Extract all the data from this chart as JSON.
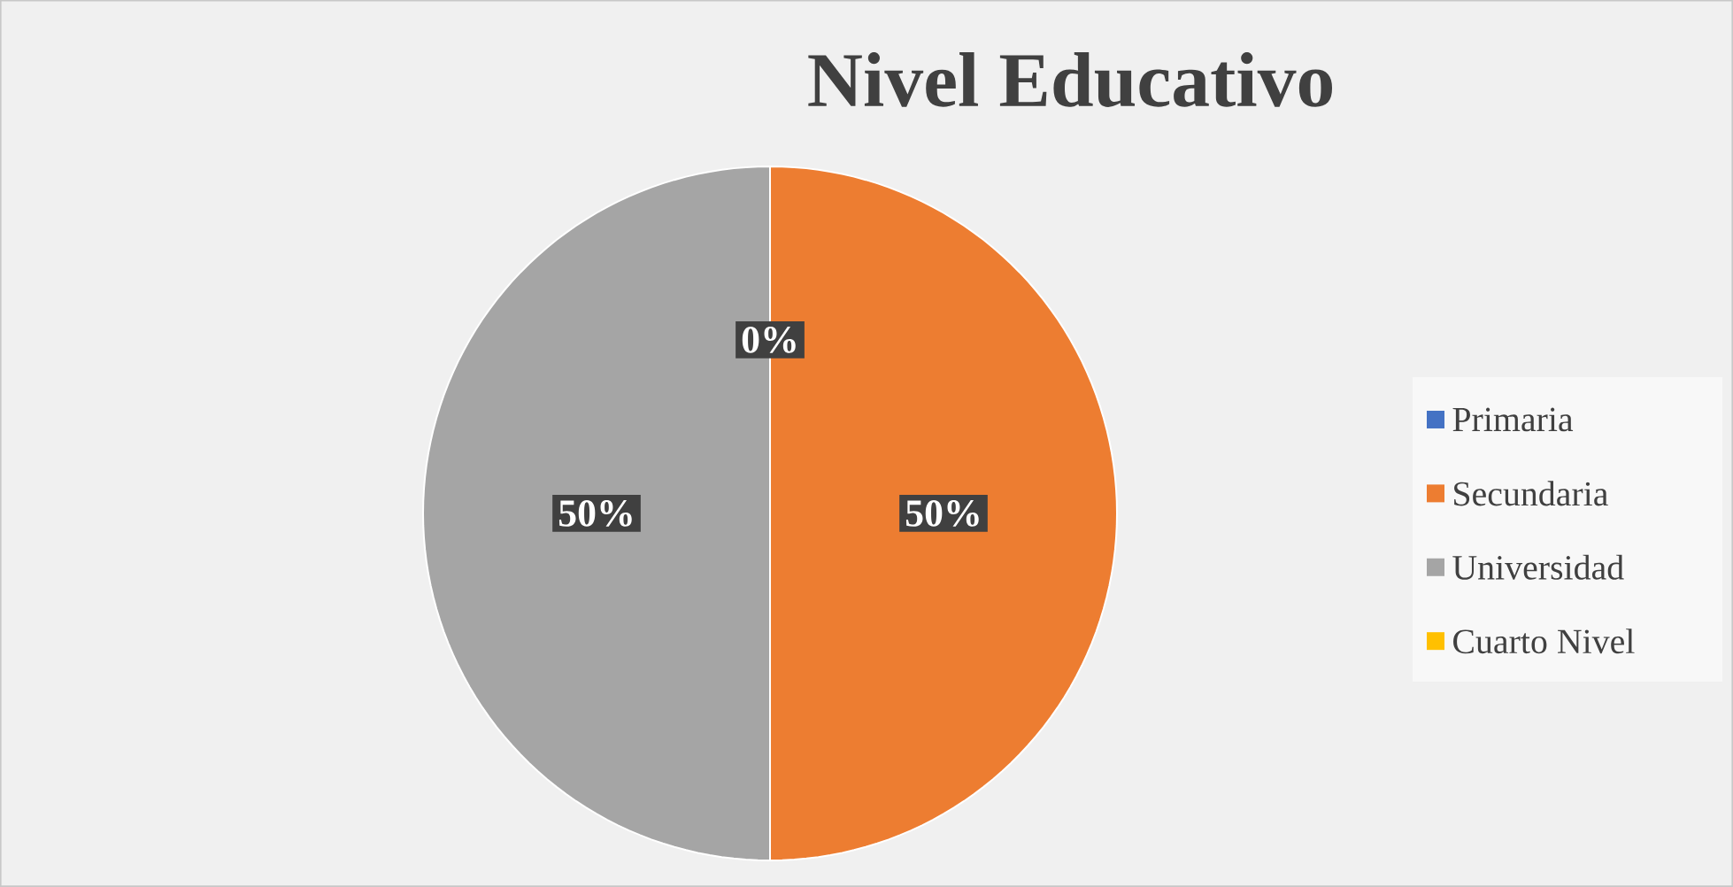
{
  "chart_data": {
    "type": "pie",
    "title": "Nivel Educativo",
    "categories": [
      "Primaria",
      "Secundaria",
      "Universidad",
      "Cuarto Nivel"
    ],
    "values": [
      0,
      50,
      50,
      0
    ],
    "colors": [
      "#4472c4",
      "#ed7d31",
      "#a5a5a5",
      "#ffc000"
    ],
    "value_labels": [
      "0%",
      "50%",
      "50%",
      null
    ],
    "legend": "right"
  }
}
